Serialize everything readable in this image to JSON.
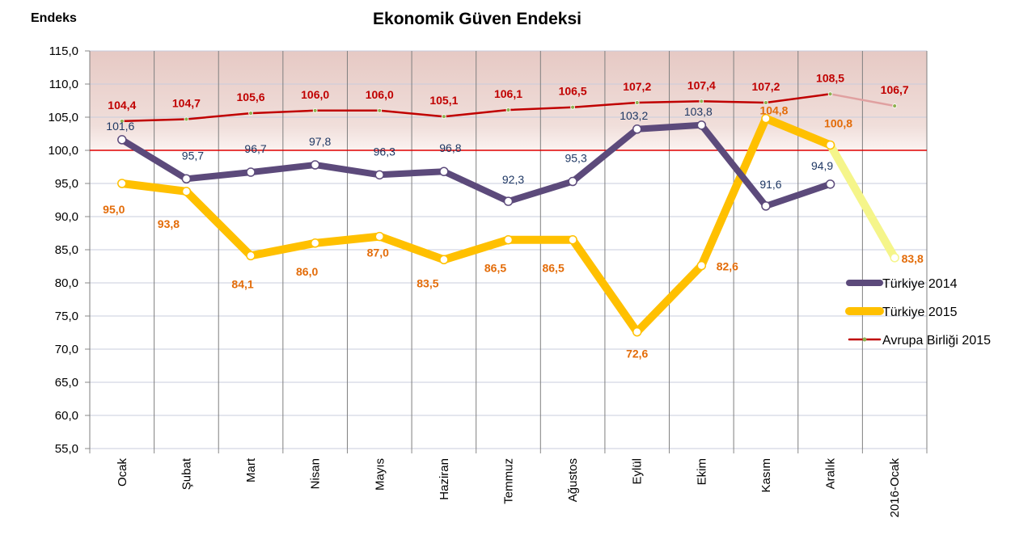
{
  "chart_data": {
    "type": "line",
    "title": "Ekonomik  Güven Endeksi",
    "ylabel": "Endeks",
    "xlabel": "",
    "ylim": [
      55,
      115
    ],
    "yticks": [
      "55,0",
      "60,0",
      "65,0",
      "70,0",
      "75,0",
      "80,0",
      "85,0",
      "90,0",
      "95,0",
      "100,0",
      "105,0",
      "110,0",
      "115,0"
    ],
    "reference_line": 100,
    "shaded_band": [
      100,
      115
    ],
    "categories": [
      "Ocak",
      "Şubat",
      "Mart",
      "Nisan",
      "Mayıs",
      "Haziran",
      "Temmuz",
      "Ağustos",
      "Eylül",
      "Ekim",
      "Kasım",
      "Aralık",
      "2016-Ocak"
    ],
    "series": [
      {
        "name": "Türkiye 2014",
        "color": "#5C4A7B",
        "values": [
          101.6,
          95.7,
          96.7,
          97.8,
          96.3,
          96.8,
          92.3,
          95.3,
          103.2,
          103.8,
          91.6,
          94.9,
          null
        ],
        "labels": [
          "101,6",
          "95,7",
          "96,7",
          "97,8",
          "96,3",
          "96,8",
          "92,3",
          "95,3",
          "103,2",
          "103,8",
          "91,6",
          "94,9",
          ""
        ]
      },
      {
        "name": "Türkiye 2015",
        "color": "#FFC000",
        "highlight_color": "#F5F58A",
        "values": [
          95.0,
          93.8,
          84.1,
          86.0,
          87.0,
          83.5,
          86.5,
          86.5,
          72.6,
          82.6,
          104.8,
          100.8,
          83.8
        ],
        "labels": [
          "95,0",
          "93,8",
          "84,1",
          "86,0",
          "87,0",
          "83,5",
          "86,5",
          "86,5",
          "72,6",
          "82,6",
          "104,8",
          "100,8",
          "83,8"
        ]
      },
      {
        "name": "Avrupa Birliği 2015",
        "color": "#C00000",
        "highlight_color": "#E0A0A0",
        "values": [
          104.4,
          104.7,
          105.6,
          106.0,
          106.0,
          105.1,
          106.1,
          106.5,
          107.2,
          107.4,
          107.2,
          108.5,
          106.7
        ],
        "labels": [
          "104,4",
          "104,7",
          "105,6",
          "106,0",
          "106,0",
          "105,1",
          "106,1",
          "106,5",
          "107,2",
          "107,4",
          "107,2",
          "108,5",
          "106,7"
        ]
      }
    ],
    "legend_position": "right"
  }
}
